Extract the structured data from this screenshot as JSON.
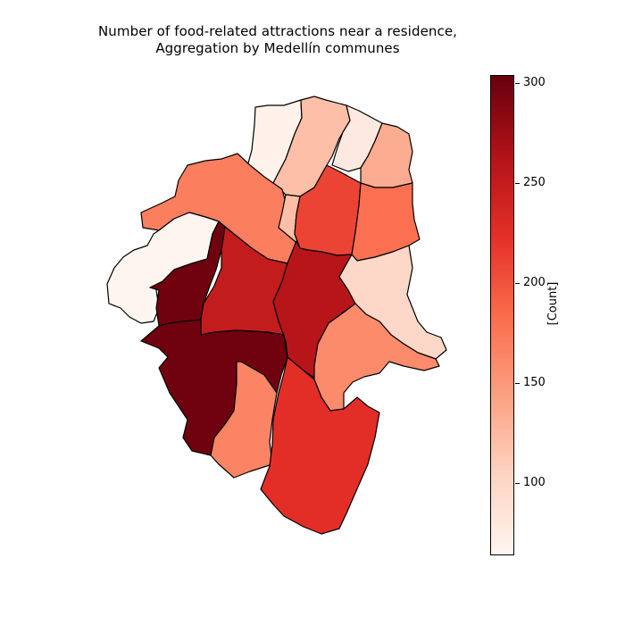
{
  "title_line1": "Number of food-related attractions near a residence,",
  "title_line2": "Aggregation by Medellín communes",
  "colorbar": {
    "label": "[Count]",
    "min": 64,
    "max": 304,
    "ticks": [
      "100",
      "150",
      "200",
      "250",
      "300"
    ],
    "colormap": [
      "#fff5f0",
      "#fdd4c2",
      "#fca082",
      "#fb6b4b",
      "#e32f27",
      "#b21218",
      "#67000d"
    ]
  },
  "chart_data": {
    "type": "choropleth",
    "title": "Number of food-related attractions near a residence, Aggregation by Medellín communes",
    "colorbar_label": "[Count]",
    "range": [
      64,
      304
    ],
    "regions": [
      {
        "id": "north-1",
        "value": 68
      },
      {
        "id": "north-2",
        "value": 120
      },
      {
        "id": "north-3",
        "value": 78
      },
      {
        "id": "northeast-1",
        "value": 135
      },
      {
        "id": "northwest-1",
        "value": 170
      },
      {
        "id": "northwest-strip",
        "value": 120
      },
      {
        "id": "north-center",
        "value": 210
      },
      {
        "id": "northeast-2",
        "value": 180
      },
      {
        "id": "west-1",
        "value": 64
      },
      {
        "id": "west-2",
        "value": 300
      },
      {
        "id": "center-west",
        "value": 250
      },
      {
        "id": "center",
        "value": 260
      },
      {
        "id": "east-1",
        "value": 100
      },
      {
        "id": "east-2",
        "value": 160
      },
      {
        "id": "southwest",
        "value": 300
      },
      {
        "id": "south-1",
        "value": 165
      },
      {
        "id": "south-2",
        "value": 225
      }
    ]
  }
}
